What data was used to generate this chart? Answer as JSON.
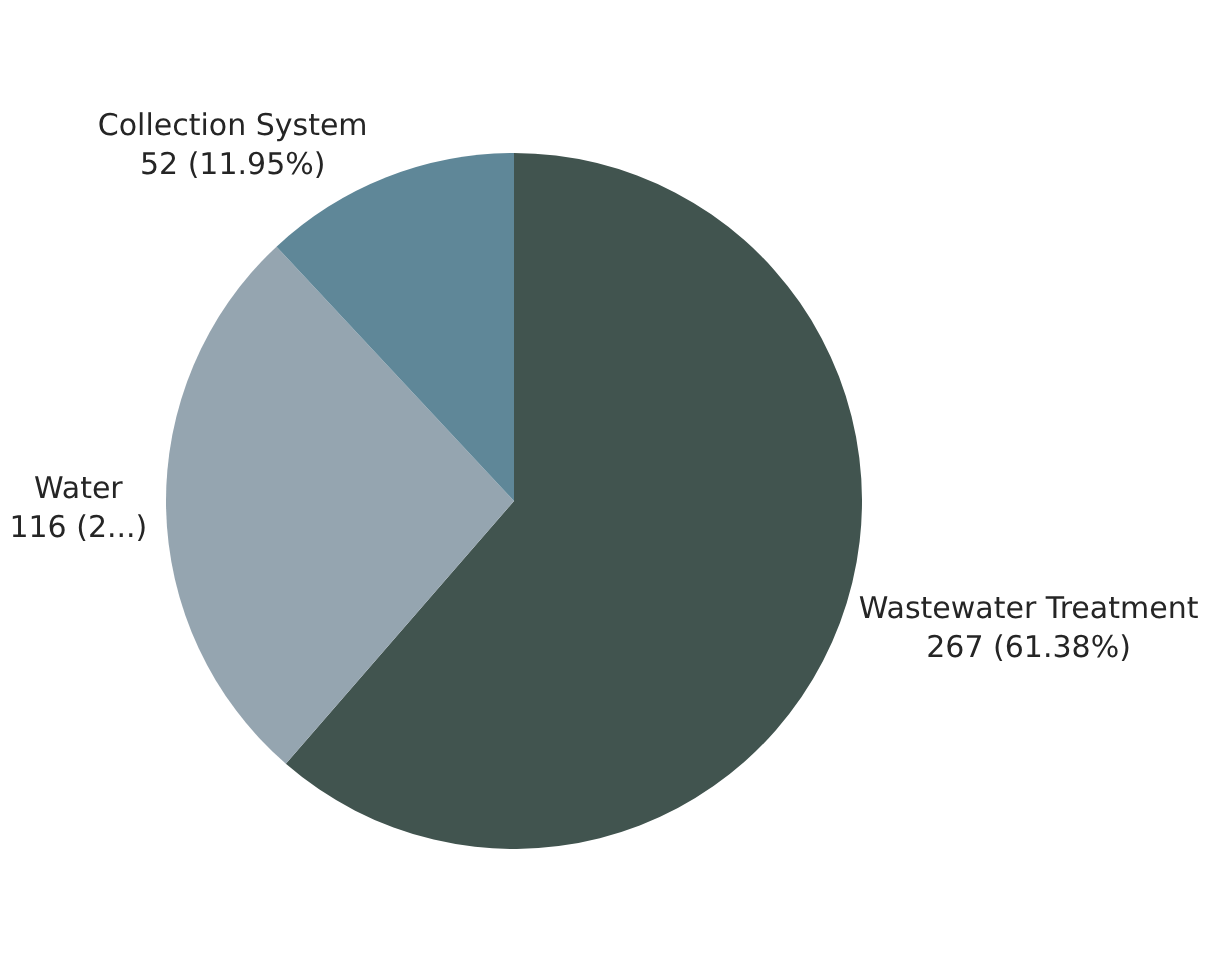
{
  "chart_data": {
    "type": "pie",
    "categories": [
      "Wastewater Treatment",
      "Water",
      "Collection System"
    ],
    "values": [
      267,
      116,
      52
    ],
    "value_labels": [
      "267 (61.38%)",
      "116 (2...)",
      "52 (11.95%)"
    ],
    "colors": [
      "#41544f",
      "#95a5b0",
      "#5f8798"
    ],
    "legend": false
  }
}
